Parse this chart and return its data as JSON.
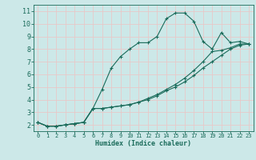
{
  "xlabel": "Humidex (Indice chaleur)",
  "bg_color": "#cce8e8",
  "grid_color": "#e8c8c8",
  "line_color": "#1a6b5a",
  "xlim": [
    -0.5,
    23.5
  ],
  "ylim": [
    1.5,
    11.5
  ],
  "xticks": [
    0,
    1,
    2,
    3,
    4,
    5,
    6,
    7,
    8,
    9,
    10,
    11,
    12,
    13,
    14,
    15,
    16,
    17,
    18,
    19,
    20,
    21,
    22,
    23
  ],
  "yticks": [
    2,
    3,
    4,
    5,
    6,
    7,
    8,
    9,
    10,
    11
  ],
  "line1_x": [
    0,
    1,
    2,
    3,
    4,
    5,
    6,
    7,
    8,
    9,
    10,
    11,
    12,
    13,
    14,
    15,
    16,
    17,
    18,
    19,
    20,
    21,
    22,
    23
  ],
  "line1_y": [
    2.2,
    1.9,
    1.9,
    2.0,
    2.1,
    2.2,
    3.3,
    4.8,
    6.5,
    7.4,
    8.0,
    8.5,
    8.5,
    9.0,
    10.4,
    10.85,
    10.85,
    10.2,
    8.6,
    8.0,
    9.3,
    8.5,
    8.6,
    8.4
  ],
  "line2_x": [
    0,
    1,
    2,
    3,
    4,
    5,
    6,
    7,
    8,
    9,
    10,
    11,
    12,
    13,
    14,
    15,
    16,
    17,
    18,
    19,
    20,
    21,
    22,
    23
  ],
  "line2_y": [
    2.2,
    1.9,
    1.9,
    2.0,
    2.1,
    2.2,
    3.3,
    3.3,
    3.4,
    3.5,
    3.6,
    3.8,
    4.0,
    4.3,
    4.7,
    5.0,
    5.4,
    5.9,
    6.5,
    7.0,
    7.5,
    8.0,
    8.3,
    8.4
  ],
  "line3_x": [
    0,
    1,
    2,
    3,
    4,
    5,
    6,
    7,
    8,
    9,
    10,
    11,
    12,
    13,
    14,
    15,
    16,
    17,
    18,
    19,
    20,
    21,
    22,
    23
  ],
  "line3_y": [
    2.2,
    1.9,
    1.9,
    2.0,
    2.1,
    2.2,
    3.3,
    3.3,
    3.4,
    3.5,
    3.6,
    3.8,
    4.1,
    4.4,
    4.8,
    5.2,
    5.7,
    6.3,
    7.0,
    7.8,
    7.9,
    8.1,
    8.4,
    8.4
  ]
}
